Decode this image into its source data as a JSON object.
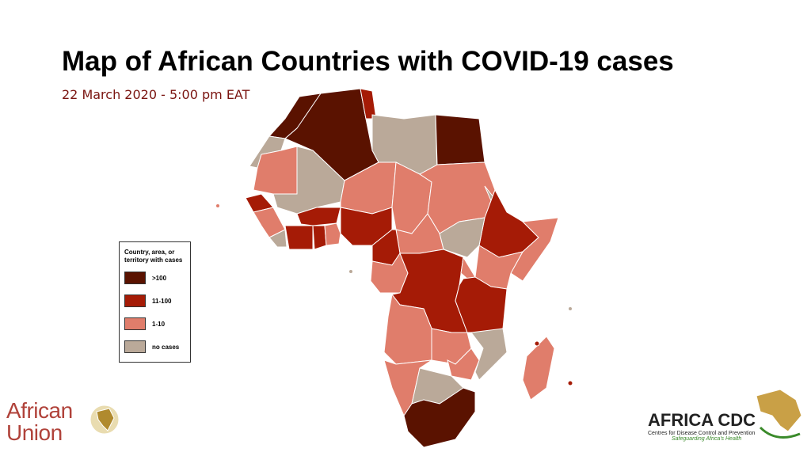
{
  "header": {
    "title": "Map of African Countries with COVID-19 cases",
    "date": "22 March 2020 - 5:00 pm EAT"
  },
  "legend": {
    "title": "Country, area, or territory with cases",
    "items": [
      {
        "label": ">100",
        "color": "#5a1200"
      },
      {
        "label": "11-100",
        "color": "#a51b06"
      },
      {
        "label": "1-10",
        "color": "#e07d6b"
      },
      {
        "label": "no cases",
        "color": "#baa999"
      }
    ]
  },
  "logos": {
    "au": {
      "line1": "African",
      "line2": "Union"
    },
    "cdc": {
      "name": "AFRICA CDC",
      "subtitle": "Centres for Disease Control and Prevention",
      "tagline": "Safeguarding Africa's Health"
    }
  }
}
